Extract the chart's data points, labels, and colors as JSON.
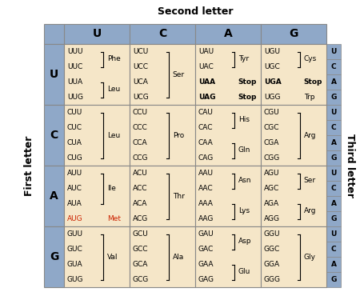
{
  "title_top": "Second letter",
  "title_left": "First letter",
  "title_right": "Third letter",
  "second_letters": [
    "U",
    "C",
    "A",
    "G"
  ],
  "first_letters": [
    "U",
    "C",
    "A",
    "G"
  ],
  "third_letters": [
    "U",
    "C",
    "A",
    "G"
  ],
  "header_bg": "#8fa8c8",
  "cell_bg": "#f5e6c8",
  "grid_color": "#888888",
  "met_color": "#cc2200",
  "cells": [
    {
      "row": 0,
      "col": 0,
      "codons": [
        "UUU",
        "UUC",
        "UUA",
        "UUG"
      ],
      "groups": [
        {
          "idx": [
            0,
            1
          ],
          "aa": "Phe",
          "bold": false
        },
        {
          "idx": [
            2,
            3
          ],
          "aa": "Leu",
          "bold": false
        }
      ],
      "red": [],
      "bold_codons": []
    },
    {
      "row": 0,
      "col": 1,
      "codons": [
        "UCU",
        "UCC",
        "UCA",
        "UCG"
      ],
      "groups": [
        {
          "idx": [
            0,
            1,
            2,
            3
          ],
          "aa": "Ser",
          "bold": false
        }
      ],
      "red": [],
      "bold_codons": []
    },
    {
      "row": 0,
      "col": 2,
      "codons": [
        "UAU",
        "UAC",
        "UAA",
        "UAG"
      ],
      "groups": [
        {
          "idx": [
            0,
            1
          ],
          "aa": "Tyr",
          "bold": false
        },
        {
          "idx": [
            2
          ],
          "aa": "Stop",
          "bold": true
        },
        {
          "idx": [
            3
          ],
          "aa": "Stop",
          "bold": true
        }
      ],
      "red": [],
      "bold_codons": [
        2,
        3
      ]
    },
    {
      "row": 0,
      "col": 3,
      "codons": [
        "UGU",
        "UGC",
        "UGA",
        "UGG"
      ],
      "groups": [
        {
          "idx": [
            0,
            1
          ],
          "aa": "Cys",
          "bold": false
        },
        {
          "idx": [
            2
          ],
          "aa": "Stop",
          "bold": true
        },
        {
          "idx": [
            3
          ],
          "aa": "Trp",
          "bold": false
        }
      ],
      "red": [],
      "bold_codons": [
        2
      ]
    },
    {
      "row": 1,
      "col": 0,
      "codons": [
        "CUU",
        "CUC",
        "CUA",
        "CUG"
      ],
      "groups": [
        {
          "idx": [
            0,
            1,
            2,
            3
          ],
          "aa": "Leu",
          "bold": false
        }
      ],
      "red": [],
      "bold_codons": []
    },
    {
      "row": 1,
      "col": 1,
      "codons": [
        "CCU",
        "CCC",
        "CCA",
        "CCG"
      ],
      "groups": [
        {
          "idx": [
            0,
            1,
            2,
            3
          ],
          "aa": "Pro",
          "bold": false
        }
      ],
      "red": [],
      "bold_codons": []
    },
    {
      "row": 1,
      "col": 2,
      "codons": [
        "CAU",
        "CAC",
        "CAA",
        "CAG"
      ],
      "groups": [
        {
          "idx": [
            0,
            1
          ],
          "aa": "His",
          "bold": false
        },
        {
          "idx": [
            2,
            3
          ],
          "aa": "Gln",
          "bold": false
        }
      ],
      "red": [],
      "bold_codons": []
    },
    {
      "row": 1,
      "col": 3,
      "codons": [
        "CGU",
        "CGC",
        "CGA",
        "CGG"
      ],
      "groups": [
        {
          "idx": [
            0,
            1,
            2,
            3
          ],
          "aa": "Arg",
          "bold": false
        }
      ],
      "red": [],
      "bold_codons": []
    },
    {
      "row": 2,
      "col": 0,
      "codons": [
        "AUU",
        "AUC",
        "AUA",
        "AUG"
      ],
      "groups": [
        {
          "idx": [
            0,
            1,
            2
          ],
          "aa": "Ile",
          "bold": false
        },
        {
          "idx": [
            3
          ],
          "aa": "Met",
          "bold": false
        }
      ],
      "red": [
        3
      ],
      "bold_codons": []
    },
    {
      "row": 2,
      "col": 1,
      "codons": [
        "ACU",
        "ACC",
        "ACA",
        "ACG"
      ],
      "groups": [
        {
          "idx": [
            0,
            1,
            2,
            3
          ],
          "aa": "Thr",
          "bold": false
        }
      ],
      "red": [],
      "bold_codons": []
    },
    {
      "row": 2,
      "col": 2,
      "codons": [
        "AAU",
        "AAC",
        "AAA",
        "AAG"
      ],
      "groups": [
        {
          "idx": [
            0,
            1
          ],
          "aa": "Asn",
          "bold": false
        },
        {
          "idx": [
            2,
            3
          ],
          "aa": "Lys",
          "bold": false
        }
      ],
      "red": [],
      "bold_codons": []
    },
    {
      "row": 2,
      "col": 3,
      "codons": [
        "AGU",
        "AGC",
        "AGA",
        "AGG"
      ],
      "groups": [
        {
          "idx": [
            0,
            1
          ],
          "aa": "Ser",
          "bold": false
        },
        {
          "idx": [
            2,
            3
          ],
          "aa": "Arg",
          "bold": false
        }
      ],
      "red": [],
      "bold_codons": []
    },
    {
      "row": 3,
      "col": 0,
      "codons": [
        "GUU",
        "GUC",
        "GUA",
        "GUG"
      ],
      "groups": [
        {
          "idx": [
            0,
            1,
            2,
            3
          ],
          "aa": "Val",
          "bold": false
        }
      ],
      "red": [],
      "bold_codons": []
    },
    {
      "row": 3,
      "col": 1,
      "codons": [
        "GCU",
        "GCC",
        "GCA",
        "GCG"
      ],
      "groups": [
        {
          "idx": [
            0,
            1,
            2,
            3
          ],
          "aa": "Ala",
          "bold": false
        }
      ],
      "red": [],
      "bold_codons": []
    },
    {
      "row": 3,
      "col": 2,
      "codons": [
        "GAU",
        "GAC",
        "GAA",
        "GAG"
      ],
      "groups": [
        {
          "idx": [
            0,
            1
          ],
          "aa": "Asp",
          "bold": false
        },
        {
          "idx": [
            2,
            3
          ],
          "aa": "Glu",
          "bold": false
        }
      ],
      "red": [],
      "bold_codons": []
    },
    {
      "row": 3,
      "col": 3,
      "codons": [
        "GGU",
        "GGC",
        "GGA",
        "GGG"
      ],
      "groups": [
        {
          "idx": [
            0,
            1,
            2,
            3
          ],
          "aa": "Gly",
          "bold": false
        }
      ],
      "red": [],
      "bold_codons": []
    }
  ]
}
